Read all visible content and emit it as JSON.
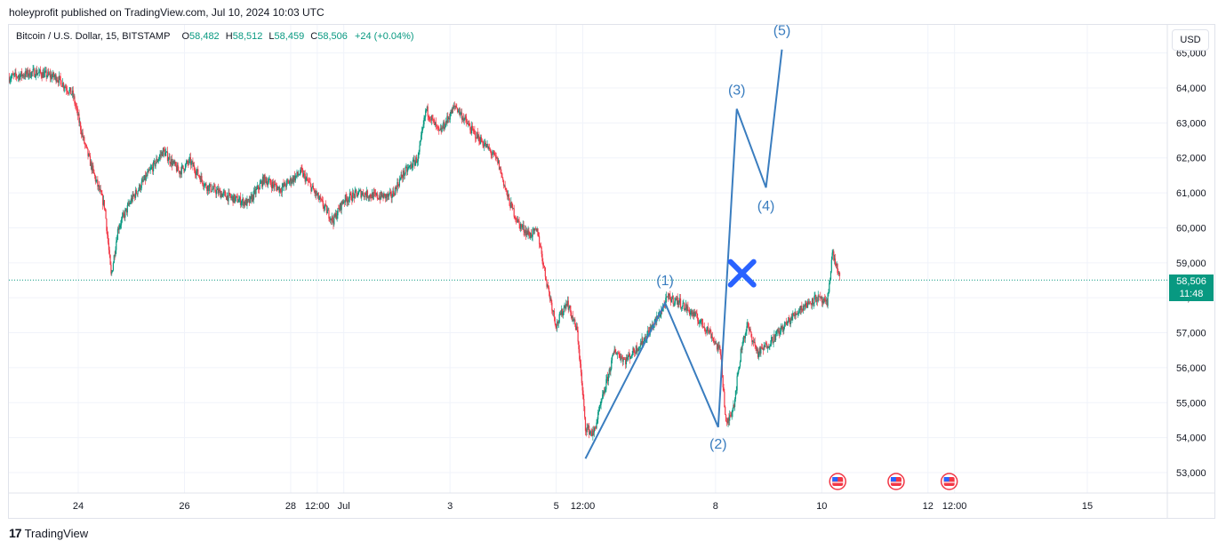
{
  "header": {
    "text": "holeyprofit published on TradingView.com, Jul 10, 2024 10:03 UTC"
  },
  "legend": {
    "symbol": "Bitcoin / U.S. Dollar, 15, BITSTAMP",
    "o_key": "O",
    "o_val": "58,482",
    "h_key": "H",
    "h_val": "58,512",
    "l_key": "L",
    "l_val": "58,459",
    "c_key": "C",
    "c_val": "58,506",
    "change": "+24 (+0.04%)"
  },
  "currency": "USD",
  "price_tag": {
    "price": "58,506",
    "countdown": "11:48"
  },
  "footer": {
    "brand": "TradingView",
    "logo": "17"
  },
  "colors": {
    "up": "#089981",
    "down": "#f23645",
    "wave": "#3a7dbf",
    "cross": "#2962ff",
    "grid": "#f0f3fa"
  },
  "chart_data": {
    "type": "candlestick",
    "y_ticks": [
      "53,000",
      "54,000",
      "55,000",
      "56,000",
      "57,000",
      "58,000",
      "59,000",
      "60,000",
      "61,000",
      "62,000",
      "63,000",
      "64,000",
      "65,000"
    ],
    "ylim": [
      52400,
      65300
    ],
    "x_ticks": [
      {
        "label": "24",
        "t": 2.0
      },
      {
        "label": "26",
        "t": 4.0
      },
      {
        "label": "28",
        "t": 6.0
      },
      {
        "label": "12:00",
        "t": 6.5
      },
      {
        "label": "Jul",
        "t": 7.0
      },
      {
        "label": "3",
        "t": 9.0
      },
      {
        "label": "5",
        "t": 11.0
      },
      {
        "label": "12:00",
        "t": 11.5
      },
      {
        "label": "8",
        "t": 14.0
      },
      {
        "label": "10",
        "t": 16.0
      },
      {
        "label": "12",
        "t": 18.0
      },
      {
        "label": "12:00",
        "t": 18.5
      },
      {
        "label": "15",
        "t": 21.0
      }
    ],
    "xlim": [
      0.7,
      23.0
    ],
    "last_price": 58506,
    "price_path": [
      [
        0.7,
        64300
      ],
      [
        1.2,
        64450
      ],
      [
        1.6,
        64300
      ],
      [
        1.9,
        63800
      ],
      [
        2.1,
        62500
      ],
      [
        2.3,
        61500
      ],
      [
        2.5,
        60600
      ],
      [
        2.62,
        58600
      ],
      [
        2.75,
        60000
      ],
      [
        3.0,
        60800
      ],
      [
        3.3,
        61500
      ],
      [
        3.6,
        62200
      ],
      [
        3.9,
        61600
      ],
      [
        4.1,
        61900
      ],
      [
        4.4,
        61200
      ],
      [
        4.8,
        60900
      ],
      [
        5.2,
        60700
      ],
      [
        5.5,
        61400
      ],
      [
        5.8,
        61100
      ],
      [
        6.2,
        61600
      ],
      [
        6.5,
        60900
      ],
      [
        6.8,
        60200
      ],
      [
        7.0,
        60800
      ],
      [
        7.3,
        61000
      ],
      [
        7.6,
        60900
      ],
      [
        7.9,
        60900
      ],
      [
        8.1,
        61500
      ],
      [
        8.4,
        62000
      ],
      [
        8.55,
        63400
      ],
      [
        8.8,
        62700
      ],
      [
        9.1,
        63500
      ],
      [
        9.4,
        62800
      ],
      [
        9.7,
        62300
      ],
      [
        9.9,
        61900
      ],
      [
        10.1,
        60800
      ],
      [
        10.3,
        60100
      ],
      [
        10.5,
        59800
      ],
      [
        10.65,
        59900
      ],
      [
        10.8,
        58600
      ],
      [
        11.0,
        57200
      ],
      [
        11.2,
        57900
      ],
      [
        11.4,
        57000
      ],
      [
        11.55,
        54300
      ],
      [
        11.7,
        54100
      ],
      [
        11.9,
        55300
      ],
      [
        12.1,
        56500
      ],
      [
        12.3,
        56200
      ],
      [
        12.6,
        56700
      ],
      [
        12.9,
        57400
      ],
      [
        13.1,
        58000
      ],
      [
        13.3,
        57900
      ],
      [
        13.6,
        57500
      ],
      [
        13.9,
        57000
      ],
      [
        14.1,
        56400
      ],
      [
        14.2,
        54300
      ],
      [
        14.35,
        55000
      ],
      [
        14.5,
        56700
      ],
      [
        14.6,
        57200
      ],
      [
        14.8,
        56400
      ],
      [
        15.0,
        56700
      ],
      [
        15.3,
        57200
      ],
      [
        15.6,
        57700
      ],
      [
        15.9,
        58000
      ],
      [
        16.1,
        57800
      ],
      [
        16.2,
        59300
      ],
      [
        16.35,
        58506
      ]
    ],
    "waves": [
      {
        "label": "(1)",
        "t": 13.05,
        "price": 57850,
        "label_dy": -20
      },
      {
        "label": "(2)",
        "t": 14.05,
        "price": 54300,
        "label_dy": 24
      },
      {
        "label": "(3)",
        "t": 14.4,
        "price": 63400,
        "label_dy": -16
      },
      {
        "label": "(4)",
        "t": 14.95,
        "price": 61150,
        "label_dy": 26
      },
      {
        "label": "(5)",
        "t": 15.25,
        "price": 65100,
        "label_dy": -16
      }
    ],
    "wave_start": {
      "t": 11.55,
      "price": 53400
    },
    "cross": {
      "t": 14.5,
      "price": 58700
    },
    "event_markers": [
      16.3,
      17.4,
      18.4
    ]
  }
}
